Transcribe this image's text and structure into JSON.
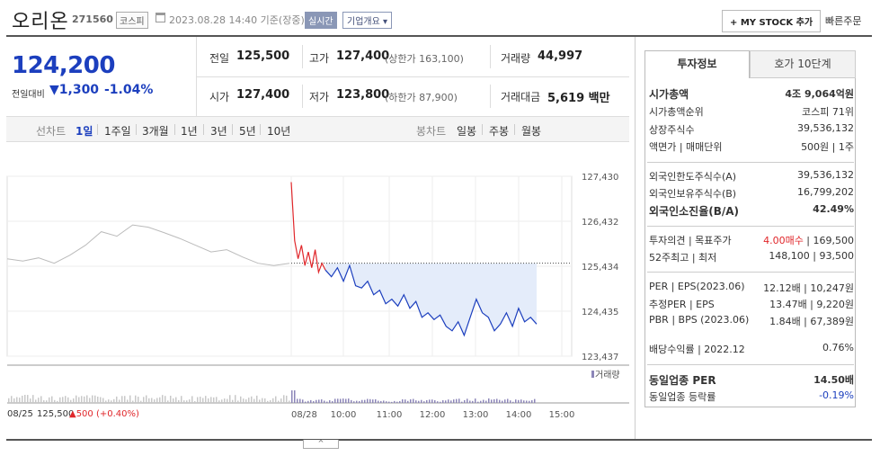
{
  "header": {
    "name": "오리온",
    "code": "271560",
    "market": "코스피",
    "datetime": "2023.08.28 14:40 기준(장중)",
    "realtime": "실시간",
    "summary": "기업개요 ▾",
    "mystock": "+ MY STOCK 추가",
    "quickorder": "빠른주문"
  },
  "price": {
    "current": "124,200",
    "change_label": "전일대비",
    "change_abs": "▼1,300",
    "change_pct": "-1.04%"
  },
  "stats": {
    "prev_label": "전일",
    "prev": "125,500",
    "high_label": "고가",
    "high": "127,400",
    "upper_limit": "(상한가 163,100)",
    "volume_label": "거래량",
    "volume": "44,997",
    "open_label": "시가",
    "open": "127,400",
    "low_label": "저가",
    "low": "123,800",
    "lower_limit": "(하한가 87,900)",
    "amount_label": "거래대금",
    "amount": "5,619 백만"
  },
  "periods": {
    "line_label": "선차트",
    "line": [
      "1일",
      "1주일",
      "3개월",
      "1년",
      "3년",
      "5년",
      "10년"
    ],
    "candle_label": "봉차트",
    "candle": [
      "일봉",
      "주봉",
      "월봉"
    ]
  },
  "panel": {
    "tab_active": "투자정보",
    "tab_other": "호가 10단계",
    "rows": [
      {
        "l": "시가총액",
        "r": "4조 9,064억원",
        "bold": true
      },
      {
        "l": "시가총액순위",
        "r": "코스피 71위"
      },
      {
        "l": "상장주식수",
        "r": "39,536,132"
      },
      {
        "l": "액면가 | 매매단위",
        "r": "500원 | 1주"
      },
      {
        "l": "외국인한도주식수(A)",
        "r": "39,536,132"
      },
      {
        "l": "외국인보유주식수(B)",
        "r": "16,799,202"
      },
      {
        "l": "외국인소진율(B/A)",
        "r": "42.49%",
        "bold": true
      },
      {
        "l": "투자의견 | 목표주가",
        "r1": "4.00매수",
        "r": " | 169,500"
      },
      {
        "l": "52주최고 | 최저",
        "r": "148,100 | 93,500"
      },
      {
        "l": "PER | EPS(2023.06)",
        "r": "12.12배 | 10,247원"
      },
      {
        "l": "추정PER | EPS",
        "r": "13.47배 | 9,220원"
      },
      {
        "l": "PBR | BPS (2023.06)",
        "r": "1.84배 | 67,389원"
      },
      {
        "l": "배당수익률 | 2022.12",
        "r": "0.76%"
      },
      {
        "l": "동일업종 PER",
        "r": "14.50배",
        "bold": true
      },
      {
        "l": "동일업종 등락률",
        "r": "-0.19%",
        "blue": true
      }
    ]
  },
  "chart_data": {
    "type": "line",
    "title": "",
    "yticks": [
      "127,430",
      "126,432",
      "125,434",
      "124,435",
      "123,437"
    ],
    "ylim": [
      123437,
      127430
    ],
    "xticks": [
      "08/28",
      "10:00",
      "11:00",
      "12:00",
      "13:00",
      "14:00",
      "15:00"
    ],
    "prev_close": 125500,
    "volume_label": "거래량",
    "prev_day": {
      "date": "08/25",
      "close": "125,500",
      "change": "▲500 (+0.40%)"
    },
    "series": [
      {
        "values": [
          125600,
          125550,
          125620,
          125500,
          125680,
          125900,
          126200,
          126100,
          126350,
          126300,
          126180,
          126050,
          125900,
          125750,
          125800,
          125640,
          125500,
          125450,
          125500
        ]
      },
      {
        "values": [
          127300,
          126000,
          125600,
          125900,
          125450,
          125750,
          125400,
          125800,
          125300,
          125500,
          125350
        ]
      },
      {
        "values": [
          125350,
          125200,
          125400,
          125100,
          125450,
          125000,
          124950,
          125100,
          124800,
          124900,
          124600,
          124700,
          124550,
          124800,
          124500,
          124650,
          124300,
          124400,
          124250,
          124350,
          124100,
          124000,
          124200,
          123900,
          124300,
          124700,
          124400,
          124300,
          124000,
          124150,
          124400,
          124100,
          124500,
          124200,
          124300,
          124150
        ]
      }
    ]
  },
  "colors": {
    "up": "#e0262a",
    "down": "#1c3fbe",
    "gray": "#bbbbbb",
    "fill": "#e4ecfa",
    "volume": "#8c86b8"
  }
}
